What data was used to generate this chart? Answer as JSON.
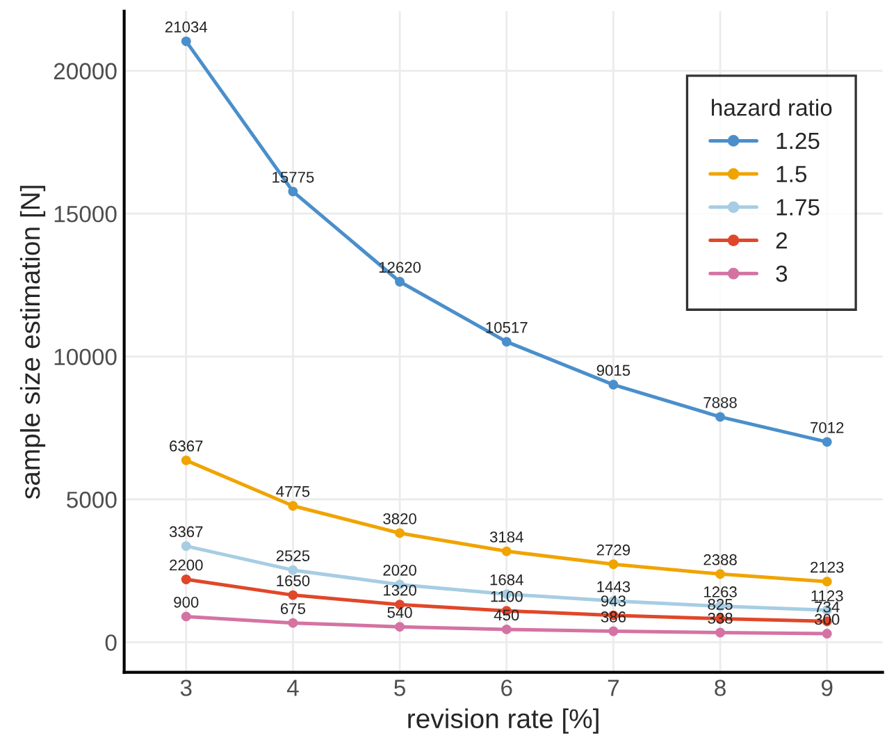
{
  "chart_data": {
    "type": "line",
    "xlabel": "revision rate [%]",
    "ylabel": "sample size estimation [N]",
    "legend_title": "hazard ratio",
    "x": [
      3,
      4,
      5,
      6,
      7,
      8,
      9
    ],
    "series": [
      {
        "name": "1.25",
        "color": "#4a8fcb",
        "values": [
          21034,
          15775,
          12620,
          10517,
          9015,
          7888,
          7012
        ]
      },
      {
        "name": "1.5",
        "color": "#f0a400",
        "values": [
          6367,
          4775,
          3820,
          3184,
          2729,
          2388,
          2123
        ]
      },
      {
        "name": "1.75",
        "color": "#a6cde3",
        "values": [
          3367,
          2525,
          2020,
          1684,
          1443,
          1263,
          1123
        ]
      },
      {
        "name": "2",
        "color": "#e0472a",
        "values": [
          2200,
          1650,
          1320,
          1100,
          943,
          825,
          734
        ]
      },
      {
        "name": "3",
        "color": "#d473a3",
        "values": [
          900,
          675,
          540,
          450,
          386,
          338,
          300
        ]
      }
    ],
    "xlim": [
      2.42,
      9.52
    ],
    "xticks": [
      3,
      4,
      5,
      6,
      7,
      8,
      9
    ],
    "ylim": [
      -1052,
      22086
    ],
    "yticks": [
      0,
      5000,
      10000,
      15000,
      20000
    ],
    "grid": true,
    "legend": "top right",
    "marker": "circle",
    "line_style": "solid",
    "data_labels": true
  }
}
